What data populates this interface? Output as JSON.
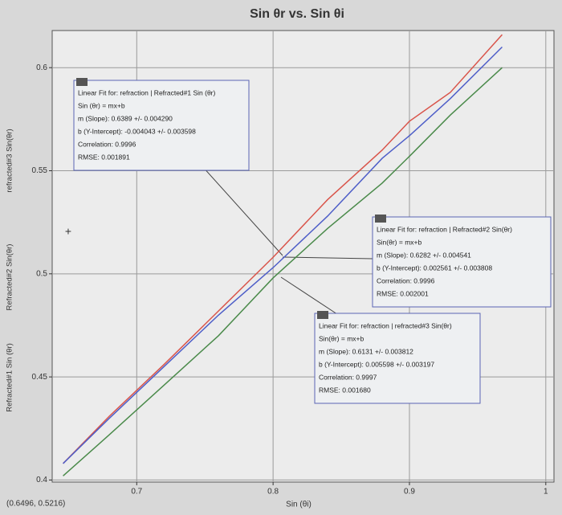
{
  "chart_data": {
    "type": "line",
    "title": "Sin θr vs. Sin θi",
    "x_label": "Sin (θi)",
    "cursor_readout": "(0.6496, 0.5216)",
    "x": [
      0.646,
      0.68,
      0.72,
      0.76,
      0.8,
      0.84,
      0.88,
      0.9,
      0.93,
      0.968
    ],
    "series": [
      {
        "name": "Refracted#1 Sin (θr)",
        "color": "#d9544a",
        "values": [
          0.408,
          0.431,
          0.456,
          0.482,
          0.508,
          0.536,
          0.56,
          0.574,
          0.588,
          0.616
        ]
      },
      {
        "name": "Refracted#2 Sin(θr)",
        "color": "#4e5ec8",
        "values": [
          0.408,
          0.43,
          0.455,
          0.48,
          0.503,
          0.528,
          0.556,
          0.567,
          0.585,
          0.61
        ]
      },
      {
        "name": "refracted#3 Sin(θr)",
        "color": "#4a8a4a",
        "values": [
          0.402,
          0.422,
          0.446,
          0.47,
          0.498,
          0.522,
          0.544,
          0.557,
          0.577,
          0.6
        ]
      }
    ],
    "xlim": [
      0.638,
      1.006
    ],
    "ylim": [
      0.399,
      0.618
    ],
    "xticks": [
      0.7,
      0.8,
      0.9,
      1
    ],
    "yticks": [
      0.4,
      0.45,
      0.5,
      0.55,
      0.6
    ],
    "grid": true,
    "annotations": [
      {
        "lines": [
          "Linear Fit for: refraction | Refracted#1 Sin (θr)",
          "Sin (θr) = mx+b",
          "m (Slope): 0.6389 +/- 0.004290",
          "b (Y-Intercept): -0.004043 +/- 0.003598",
          "Correlation: 0.9996",
          "RMSE: 0.001891"
        ]
      },
      {
        "lines": [
          "Linear Fit for: refraction | Refracted#2 Sin(θr)",
          "Sin(θr) = mx+b",
          "m (Slope): 0.6282 +/- 0.004541",
          "b (Y-Intercept): 0.002561 +/- 0.003808",
          "Correlation: 0.9996",
          "RMSE: 0.002001"
        ]
      },
      {
        "lines": [
          "Linear Fit for: refraction | refracted#3 Sin(θr)",
          "Sin(θr) = mx+b",
          "m (Slope): 0.6131 +/- 0.003812",
          "b (Y-Intercept): 0.005598 +/- 0.003197",
          "Correlation: 0.9997",
          "RMSE: 0.001680"
        ]
      }
    ]
  }
}
